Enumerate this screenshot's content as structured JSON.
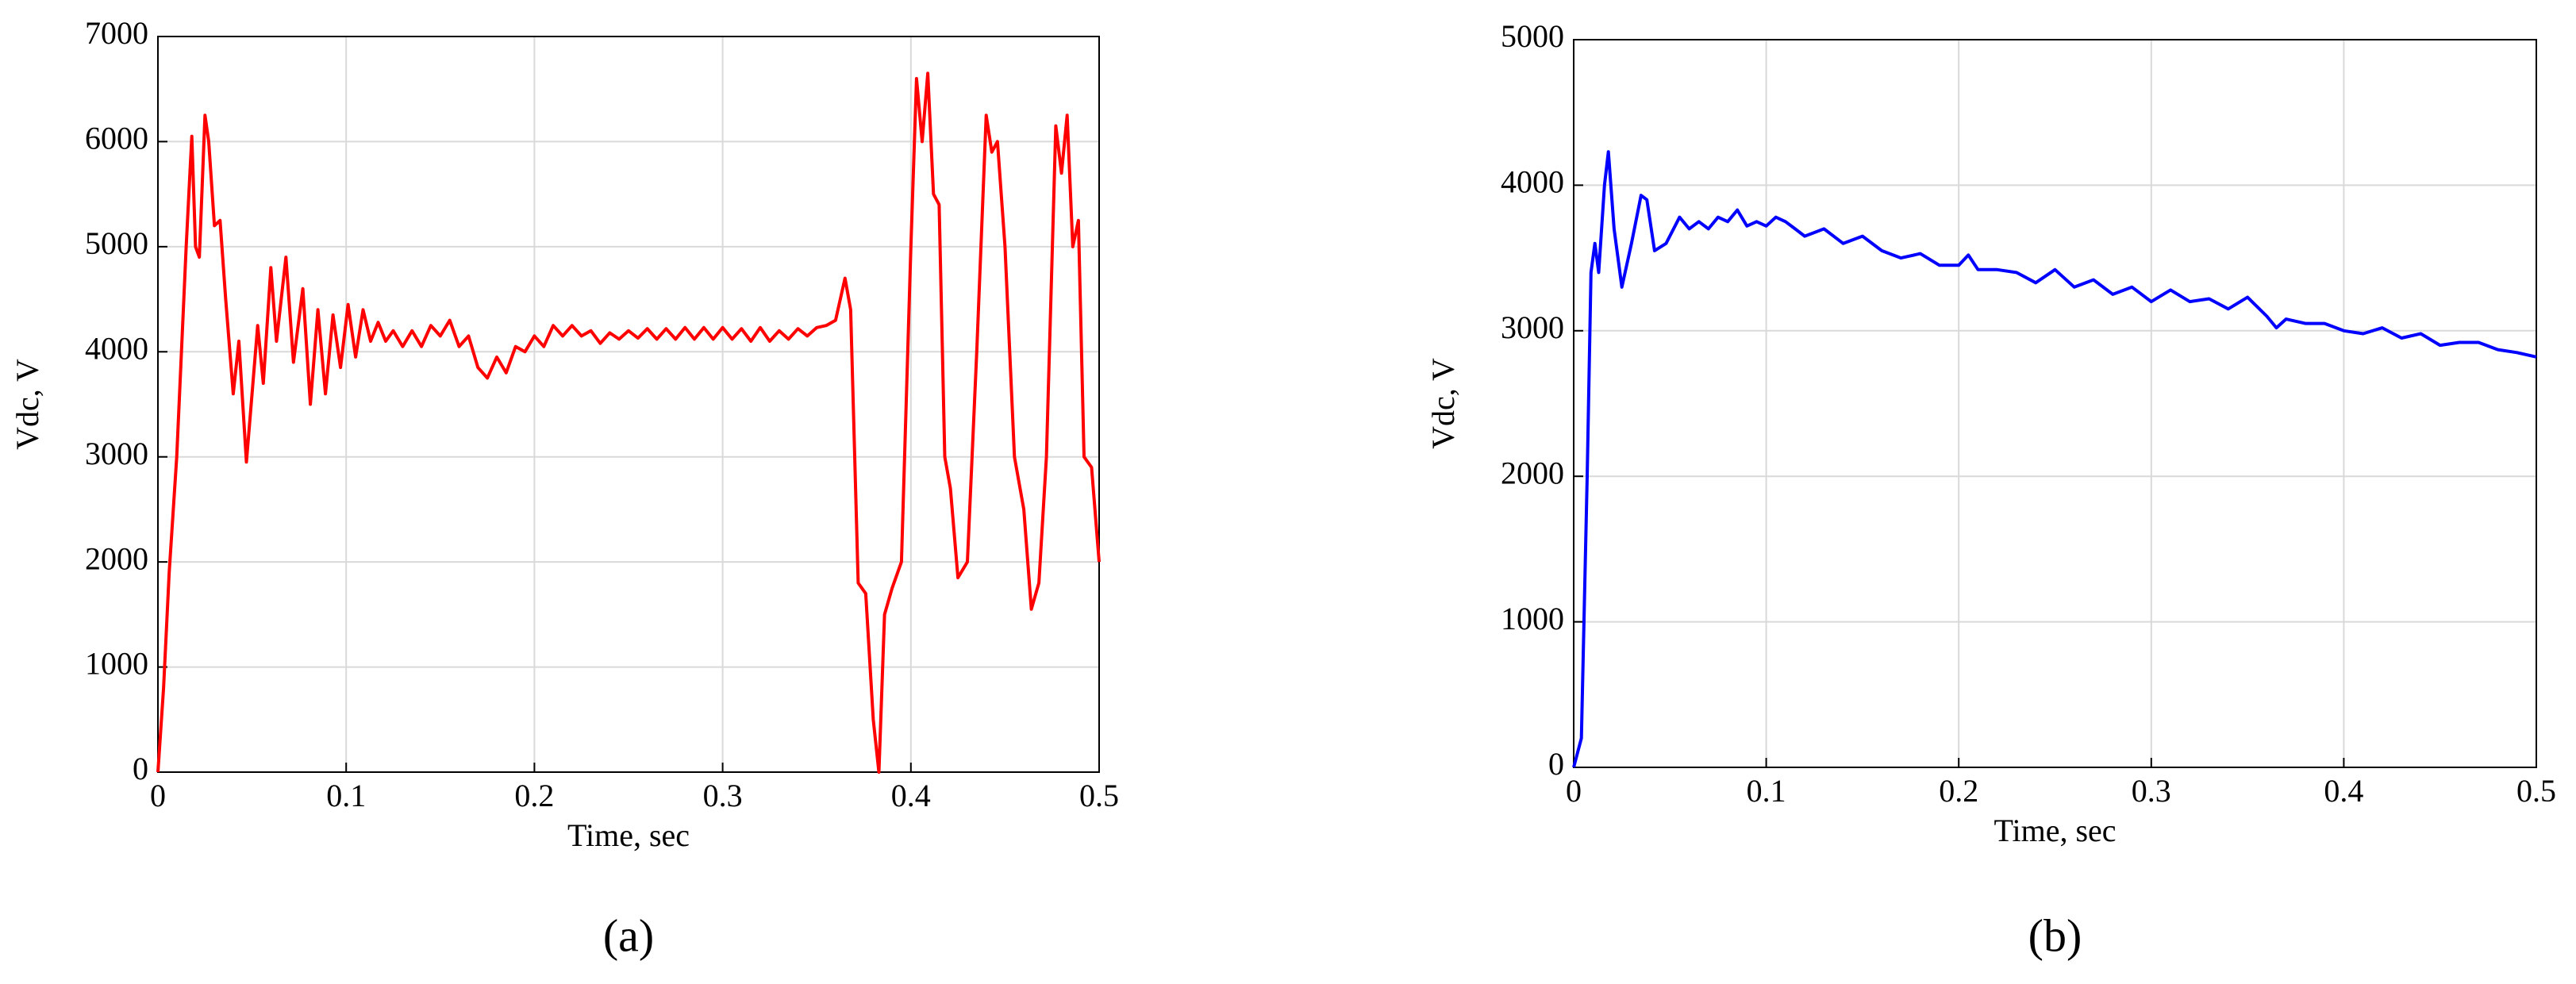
{
  "chart_data": [
    {
      "type": "line",
      "caption": "(a)",
      "xlabel": "Time, sec",
      "ylabel": "Vdc, V",
      "xlim": [
        0,
        0.5
      ],
      "ylim": [
        0,
        7000
      ],
      "xticks": [
        0,
        0.1,
        0.2,
        0.3,
        0.4,
        0.5
      ],
      "yticks": [
        0,
        1000,
        2000,
        3000,
        4000,
        5000,
        6000,
        7000
      ],
      "grid": true,
      "x": [
        0,
        0.003,
        0.006,
        0.01,
        0.015,
        0.018,
        0.02,
        0.022,
        0.025,
        0.027,
        0.03,
        0.033,
        0.036,
        0.04,
        0.043,
        0.047,
        0.05,
        0.053,
        0.056,
        0.06,
        0.063,
        0.068,
        0.072,
        0.077,
        0.081,
        0.085,
        0.089,
        0.093,
        0.097,
        0.101,
        0.105,
        0.109,
        0.113,
        0.117,
        0.121,
        0.125,
        0.13,
        0.135,
        0.14,
        0.145,
        0.15,
        0.155,
        0.16,
        0.165,
        0.17,
        0.175,
        0.18,
        0.185,
        0.19,
        0.195,
        0.2,
        0.205,
        0.21,
        0.215,
        0.22,
        0.225,
        0.23,
        0.235,
        0.24,
        0.245,
        0.25,
        0.255,
        0.26,
        0.265,
        0.27,
        0.275,
        0.28,
        0.285,
        0.29,
        0.295,
        0.3,
        0.305,
        0.31,
        0.315,
        0.32,
        0.325,
        0.33,
        0.335,
        0.34,
        0.345,
        0.35,
        0.355,
        0.36,
        0.365,
        0.368,
        0.372,
        0.376,
        0.38,
        0.383,
        0.386,
        0.39,
        0.395,
        0.4,
        0.403,
        0.406,
        0.409,
        0.412,
        0.415,
        0.418,
        0.421,
        0.425,
        0.43,
        0.435,
        0.44,
        0.443,
        0.446,
        0.45,
        0.455,
        0.46,
        0.464,
        0.468,
        0.472,
        0.477,
        0.48,
        0.483,
        0.486,
        0.489,
        0.492,
        0.496,
        0.5
      ],
      "series": [
        {
          "color": "#ff0000",
          "values": [
            0,
            800,
            1900,
            3000,
            5000,
            6050,
            5000,
            4900,
            6250,
            6000,
            5200,
            5250,
            4500,
            3600,
            4100,
            2950,
            3600,
            4250,
            3700,
            4800,
            4100,
            4900,
            3900,
            4600,
            3500,
            4400,
            3600,
            4350,
            3850,
            4450,
            3950,
            4400,
            4100,
            4280,
            4100,
            4200,
            4050,
            4200,
            4050,
            4250,
            4150,
            4300,
            4050,
            4150,
            3850,
            3750,
            3950,
            3800,
            4050,
            4000,
            4150,
            4050,
            4250,
            4150,
            4250,
            4150,
            4200,
            4080,
            4180,
            4120,
            4200,
            4130,
            4220,
            4120,
            4220,
            4120,
            4230,
            4120,
            4230,
            4120,
            4230,
            4120,
            4220,
            4100,
            4230,
            4100,
            4200,
            4120,
            4220,
            4150,
            4230,
            4250,
            4300,
            4700,
            4400,
            1800,
            1700,
            500,
            0,
            1500,
            1750,
            2000,
            5000,
            6600,
            6000,
            6650,
            5500,
            5400,
            3000,
            2700,
            1850,
            2000,
            4000,
            6250,
            5900,
            6000,
            5000,
            3000,
            2500,
            1550,
            1800,
            3000,
            6150,
            5700,
            6250,
            5000,
            5250,
            3000,
            2900,
            2000
          ]
        }
      ]
    },
    {
      "type": "line",
      "caption": "(b)",
      "xlabel": "Time, sec",
      "ylabel": "Vdc, V",
      "xlim": [
        0,
        0.5
      ],
      "ylim": [
        0,
        5000
      ],
      "xticks": [
        0,
        0.1,
        0.2,
        0.3,
        0.4,
        0.5
      ],
      "yticks": [
        0,
        1000,
        2000,
        3000,
        4000,
        5000
      ],
      "grid": true,
      "x": [
        0,
        0.004,
        0.007,
        0.009,
        0.011,
        0.013,
        0.016,
        0.018,
        0.021,
        0.025,
        0.03,
        0.035,
        0.038,
        0.042,
        0.048,
        0.055,
        0.06,
        0.065,
        0.07,
        0.075,
        0.08,
        0.085,
        0.09,
        0.095,
        0.1,
        0.105,
        0.11,
        0.115,
        0.12,
        0.13,
        0.14,
        0.15,
        0.16,
        0.17,
        0.18,
        0.19,
        0.2,
        0.205,
        0.21,
        0.22,
        0.23,
        0.24,
        0.25,
        0.26,
        0.27,
        0.28,
        0.29,
        0.3,
        0.31,
        0.32,
        0.33,
        0.34,
        0.35,
        0.36,
        0.365,
        0.37,
        0.38,
        0.39,
        0.4,
        0.41,
        0.42,
        0.43,
        0.44,
        0.45,
        0.46,
        0.47,
        0.48,
        0.49,
        0.5
      ],
      "series": [
        {
          "color": "#0000ff",
          "values": [
            0,
            200,
            2000,
            3400,
            3600,
            3400,
            4000,
            4230,
            3700,
            3300,
            3600,
            3930,
            3900,
            3550,
            3600,
            3780,
            3700,
            3750,
            3700,
            3780,
            3750,
            3830,
            3720,
            3750,
            3720,
            3780,
            3750,
            3700,
            3650,
            3700,
            3600,
            3650,
            3550,
            3500,
            3530,
            3450,
            3450,
            3520,
            3420,
            3420,
            3400,
            3330,
            3420,
            3300,
            3350,
            3250,
            3300,
            3200,
            3280,
            3200,
            3220,
            3150,
            3230,
            3100,
            3020,
            3080,
            3050,
            3050,
            3000,
            2980,
            3020,
            2950,
            2980,
            2900,
            2920,
            2920,
            2870,
            2850,
            2820
          ]
        }
      ]
    }
  ]
}
